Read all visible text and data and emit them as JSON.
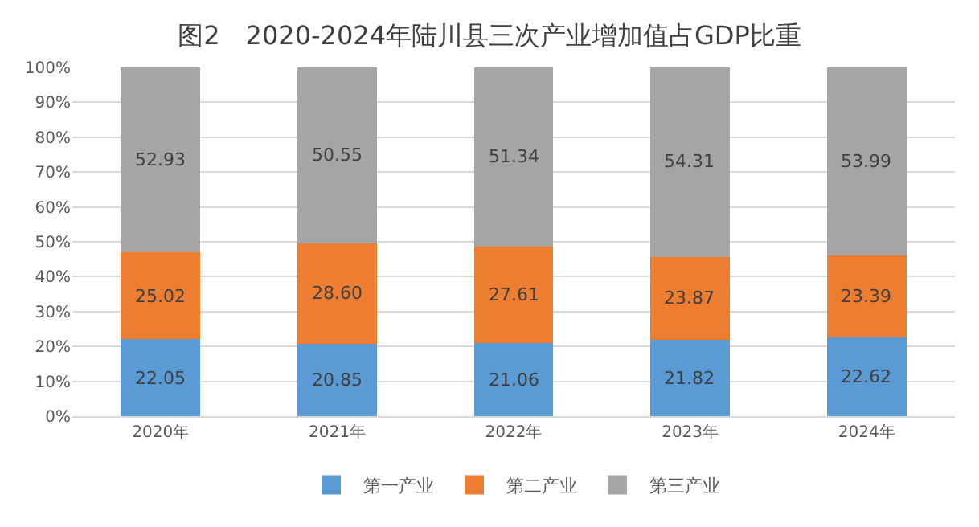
{
  "chart_data": {
    "type": "bar",
    "stacked": true,
    "title": "图2　2020-2024年陆川县三次产业增加值占GDP比重",
    "categories": [
      "2020年",
      "2021年",
      "2022年",
      "2023年",
      "2024年"
    ],
    "series": [
      {
        "name": "第一产业",
        "color": "#5b9bd5",
        "values": [
          22.05,
          20.85,
          21.06,
          21.82,
          22.62
        ],
        "value_labels": [
          "22.05",
          "20.85",
          "21.06",
          "21.82",
          "22.62"
        ]
      },
      {
        "name": "第二产业",
        "color": "#ed7d31",
        "values": [
          25.02,
          28.6,
          27.61,
          23.87,
          23.39
        ],
        "value_labels": [
          "25.02",
          "28.60",
          "27.61",
          "23.87",
          "23.39"
        ]
      },
      {
        "name": "第三产业",
        "color": "#a5a5a5",
        "values": [
          52.93,
          50.55,
          51.34,
          54.31,
          53.99
        ],
        "value_labels": [
          "52.93",
          "50.55",
          "51.34",
          "54.31",
          "53.99"
        ]
      }
    ],
    "ylim": [
      0,
      100
    ],
    "yticks": [
      {
        "value": 0,
        "label": "0%"
      },
      {
        "value": 10,
        "label": "10%"
      },
      {
        "value": 20,
        "label": "20%"
      },
      {
        "value": 30,
        "label": "30%"
      },
      {
        "value": 40,
        "label": "40%"
      },
      {
        "value": 50,
        "label": "50%"
      },
      {
        "value": 60,
        "label": "60%"
      },
      {
        "value": 70,
        "label": "70%"
      },
      {
        "value": 80,
        "label": "80%"
      },
      {
        "value": 90,
        "label": "90%"
      },
      {
        "value": 100,
        "label": "100%"
      }
    ],
    "grid": "y",
    "legend": "bottom"
  }
}
